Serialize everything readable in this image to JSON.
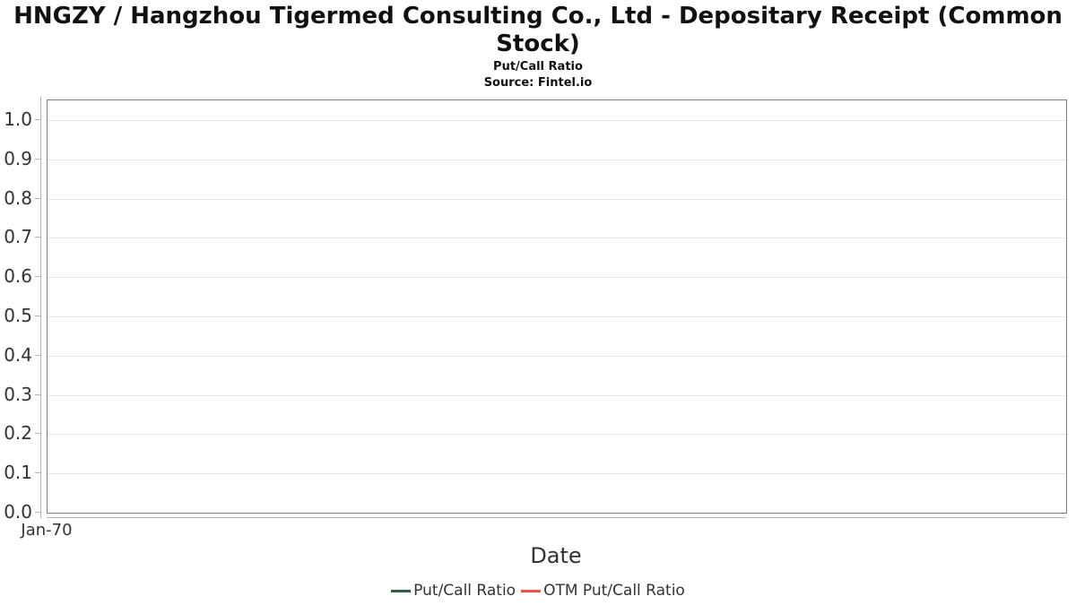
{
  "header": {
    "title": "HNGZY / Hangzhou Tigermed Consulting Co., Ltd - Depositary Receipt (Common Stock)",
    "title_line1": "HNGZY / Hangzhou Tigermed Consulting Co., Ltd - Depositary Receipt (Common",
    "title_line2": "Stock)",
    "subtitle": "Put/Call Ratio",
    "source": "Source: Fintel.io"
  },
  "chart_data": {
    "type": "line",
    "title": "HNGZY / Hangzhou Tigermed Consulting Co., Ltd - Depositary Receipt (Common Stock)",
    "subtitle": "Put/Call Ratio",
    "source": "Source: Fintel.io",
    "xlabel": "Date",
    "ylabel": "",
    "ylim": [
      0,
      1.05
    ],
    "yticks": [
      0.0,
      0.1,
      0.2,
      0.3,
      0.4,
      0.5,
      0.6,
      0.7,
      0.8,
      0.9,
      1.0
    ],
    "xticks": [
      "Jan-70"
    ],
    "grid": "horizontal-only",
    "legend_position": "bottom-center",
    "series": [
      {
        "name": "Put/Call Ratio",
        "color": "#2d5f3f",
        "x": [],
        "values": []
      },
      {
        "name": "OTM Put/Call Ratio",
        "color": "#f0524f",
        "x": [],
        "values": []
      }
    ]
  },
  "colors": {
    "plot_border": "#7d7d7d",
    "gridline": "#e6e6e6",
    "axis_line": "#b3b3b3",
    "axis_text": "#333333",
    "title_text": "#111111",
    "put_call_series": "#2d5f3f",
    "otm_put_call_series": "#f0524f"
  }
}
